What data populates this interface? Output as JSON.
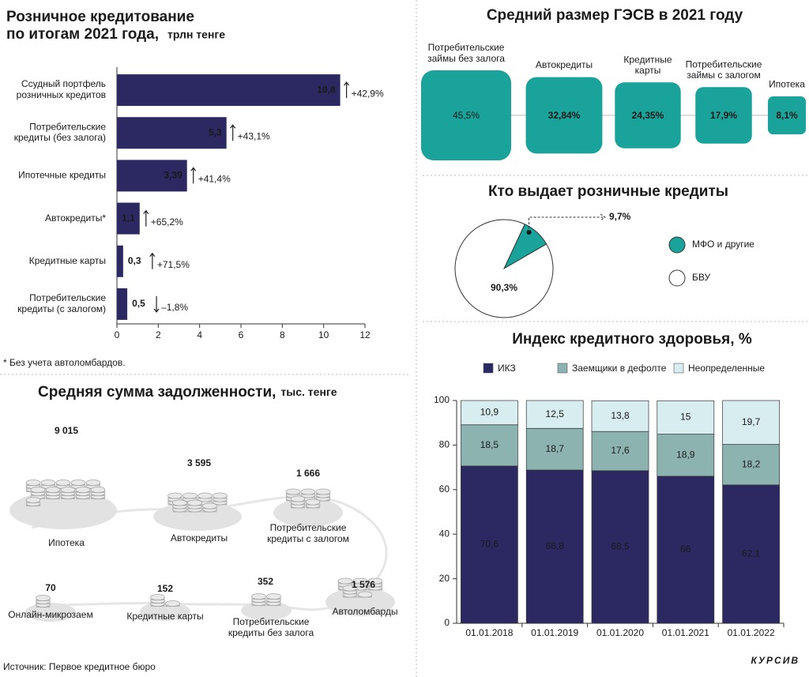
{
  "chart_data": [
    {
      "type": "bar",
      "title": "Розничное кредитование\nпо итогам 2021 года,",
      "subtitle": "трлн тенге",
      "categories": [
        "Ссудный портфель\nрозничных кредитов",
        "Потребительские\nкредиты (без залога)",
        "Ипотечные кредиты",
        "Автокредиты*",
        "Кредитные карты",
        "Потребительские\nкредиты (с залогом)"
      ],
      "values": [
        10.8,
        5.3,
        3.39,
        1.1,
        0.3,
        0.5
      ],
      "value_labels": [
        "10,8",
        "5,3",
        "3,39",
        "1,1",
        "0,3",
        "0,5"
      ],
      "change_labels": [
        "+42,9%",
        "+43,1%",
        "+41,4%",
        "+65,2%",
        "+71,5%",
        "–1,8%"
      ],
      "color": "#2b2862",
      "xlim": [
        0,
        12
      ],
      "xticks": [
        0,
        2,
        4,
        6,
        8,
        10,
        12
      ],
      "note": "* Без учета автоломбардов."
    },
    {
      "type": "bubble",
      "title": "Средний размер ГЭСВ в 2021 году",
      "categories": [
        "Потребительские\nзаймы без залога",
        "Автокредиты",
        "Кредитные\nкарты",
        "Потребительские\nзаймы с залогом",
        "Ипотека"
      ],
      "values": [
        45.5,
        32.84,
        24.35,
        17.9,
        8.1
      ],
      "value_labels": [
        "45,5%",
        "32,84%",
        "24,35%",
        "17,9%",
        "8,1%"
      ],
      "color": "#1aa39a"
    },
    {
      "type": "pie",
      "title": "Кто выдает розничные кредиты",
      "categories": [
        "МФО и другие",
        "БВУ"
      ],
      "values": [
        9.7,
        90.3
      ],
      "value_labels": [
        "9,7%",
        "90,3%"
      ],
      "colors": [
        "#1aa39a",
        "#ffffff"
      ]
    },
    {
      "type": "stacked_bar",
      "title": "Индекс кредитного здоровья, %",
      "categories": [
        "01.01.2018",
        "01.01.2019",
        "01.01.2020",
        "01.01.2021",
        "01.01.2022"
      ],
      "series": [
        {
          "name": "ИКЗ",
          "color": "#2b2862",
          "values": [
            70.6,
            68.8,
            68.5,
            66,
            62.1
          ],
          "value_labels": [
            "70,6",
            "68,8",
            "68,5",
            "66",
            "62,1"
          ]
        },
        {
          "name": "Заемщики в дефолте",
          "color": "#8db3b1",
          "values": [
            18.5,
            18.7,
            17.6,
            18.9,
            18.2
          ],
          "value_labels": [
            "18,5",
            "18,7",
            "17,6",
            "18,9",
            "18,2"
          ]
        },
        {
          "name": "Неопределенные",
          "color": "#d8edf0",
          "values": [
            10.9,
            12.5,
            13.8,
            15,
            19.7
          ],
          "value_labels": [
            "10,9",
            "12,5",
            "13,8",
            "15",
            "19,7"
          ]
        }
      ],
      "ylim": [
        0,
        100
      ],
      "yticks": [
        0,
        20,
        40,
        60,
        80,
        100
      ]
    },
    {
      "type": "pictogram",
      "title": "Средняя сумма задолженности,",
      "subtitle": "тыс. тенге",
      "categories": [
        "Ипотека",
        "Автокредиты",
        "Потребительские\nкредиты с залогом",
        "Автоломбарды",
        "Потребительские\nкредиты без залога",
        "Кредитные карты",
        "Онлайн-микрозаем"
      ],
      "values": [
        9015,
        3595,
        1666,
        1576,
        352,
        152,
        70
      ],
      "value_labels": [
        "9 015",
        "3 595",
        "1 666",
        "1 576",
        "352",
        "152",
        "70"
      ]
    }
  ],
  "source": "Источник: Первое кредитное бюро",
  "logo": "КУРСИВ"
}
